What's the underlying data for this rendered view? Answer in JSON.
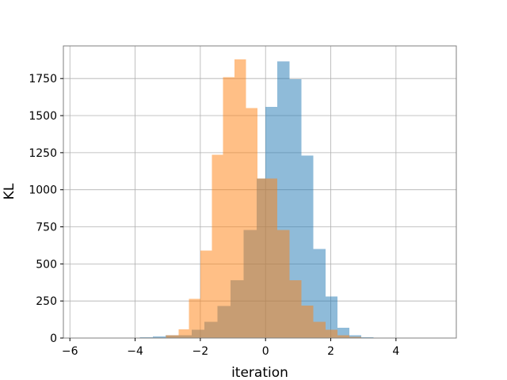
{
  "chart_data": {
    "type": "histogram",
    "title": "",
    "xlabel": "iteration",
    "ylabel": "KL",
    "xlim": [
      -6.2,
      5.85
    ],
    "ylim": [
      0,
      1970
    ],
    "xticks": [
      -6,
      -4,
      -2,
      0,
      2,
      4
    ],
    "xtick_labels": [
      "−6",
      "−4",
      "−2",
      "0",
      "2",
      "4"
    ],
    "yticks": [
      0,
      250,
      500,
      750,
      1000,
      1250,
      1500,
      1750
    ],
    "ytick_labels": [
      "0",
      "250",
      "500",
      "750",
      "1000",
      "1250",
      "1500",
      "1750"
    ],
    "grid": true,
    "legend": "none",
    "series": [
      {
        "color": "#1f77b4",
        "opacity": 0.5,
        "bins": [
          {
            "x0": -5.86,
            "x1": -5.46,
            "count": 1
          },
          {
            "x0": -5.46,
            "x1": -5.06,
            "count": 1
          },
          {
            "x0": -5.06,
            "x1": -4.66,
            "count": 1
          },
          {
            "x0": -4.66,
            "x1": -4.26,
            "count": 2
          },
          {
            "x0": -4.26,
            "x1": -3.86,
            "count": 2
          },
          {
            "x0": -3.86,
            "x1": -3.46,
            "count": 5
          },
          {
            "x0": -3.46,
            "x1": -3.07,
            "count": 10
          },
          {
            "x0": -3.07,
            "x1": -2.67,
            "count": 20
          },
          {
            "x0": -2.67,
            "x1": -2.27,
            "count": 18
          },
          {
            "x0": -2.27,
            "x1": -1.87,
            "count": 55
          },
          {
            "x0": -1.87,
            "x1": -1.47,
            "count": 110
          },
          {
            "x0": -1.47,
            "x1": -1.07,
            "count": 215
          },
          {
            "x0": -1.07,
            "x1": -0.67,
            "count": 390
          },
          {
            "x0": -0.67,
            "x1": -0.27,
            "count": 730
          },
          {
            "x0": -0.27,
            "x1": 0.0,
            "count": 1075
          },
          {
            "x0": 0.0,
            "x1": 0.36,
            "count": 1560
          },
          {
            "x0": 0.36,
            "x1": 0.73,
            "count": 1865
          },
          {
            "x0": 0.73,
            "x1": 1.1,
            "count": 1745
          },
          {
            "x0": 1.1,
            "x1": 1.47,
            "count": 1230
          },
          {
            "x0": 1.47,
            "x1": 1.84,
            "count": 600
          },
          {
            "x0": 1.84,
            "x1": 2.2,
            "count": 280
          },
          {
            "x0": 2.2,
            "x1": 2.57,
            "count": 70
          },
          {
            "x0": 2.57,
            "x1": 2.94,
            "count": 18
          },
          {
            "x0": 2.94,
            "x1": 3.31,
            "count": 5
          },
          {
            "x0": 3.31,
            "x1": 3.68,
            "count": 2
          }
        ]
      },
      {
        "color": "#ff7f0e",
        "opacity": 0.5,
        "bins": [
          {
            "x0": -3.05,
            "x1": -2.67,
            "count": 20
          },
          {
            "x0": -2.67,
            "x1": -2.35,
            "count": 58
          },
          {
            "x0": -2.35,
            "x1": -2.0,
            "count": 265
          },
          {
            "x0": -2.0,
            "x1": -1.65,
            "count": 590
          },
          {
            "x0": -1.65,
            "x1": -1.3,
            "count": 1235
          },
          {
            "x0": -1.3,
            "x1": -0.95,
            "count": 1760
          },
          {
            "x0": -0.95,
            "x1": -0.6,
            "count": 1880
          },
          {
            "x0": -0.6,
            "x1": -0.25,
            "count": 1550
          },
          {
            "x0": -0.25,
            "x1": 0.0,
            "count": 1075
          },
          {
            "x0": 0.0,
            "x1": 0.36,
            "count": 1075
          },
          {
            "x0": 0.36,
            "x1": 0.73,
            "count": 730
          },
          {
            "x0": 0.73,
            "x1": 1.1,
            "count": 390
          },
          {
            "x0": 1.1,
            "x1": 1.47,
            "count": 220
          },
          {
            "x0": 1.47,
            "x1": 1.84,
            "count": 110
          },
          {
            "x0": 1.84,
            "x1": 2.2,
            "count": 55
          },
          {
            "x0": 2.2,
            "x1": 2.57,
            "count": 20
          },
          {
            "x0": 2.57,
            "x1": 2.94,
            "count": 8
          },
          {
            "x0": 2.94,
            "x1": 3.31,
            "count": 4
          },
          {
            "x0": 3.31,
            "x1": 3.68,
            "count": 2
          }
        ]
      }
    ]
  }
}
